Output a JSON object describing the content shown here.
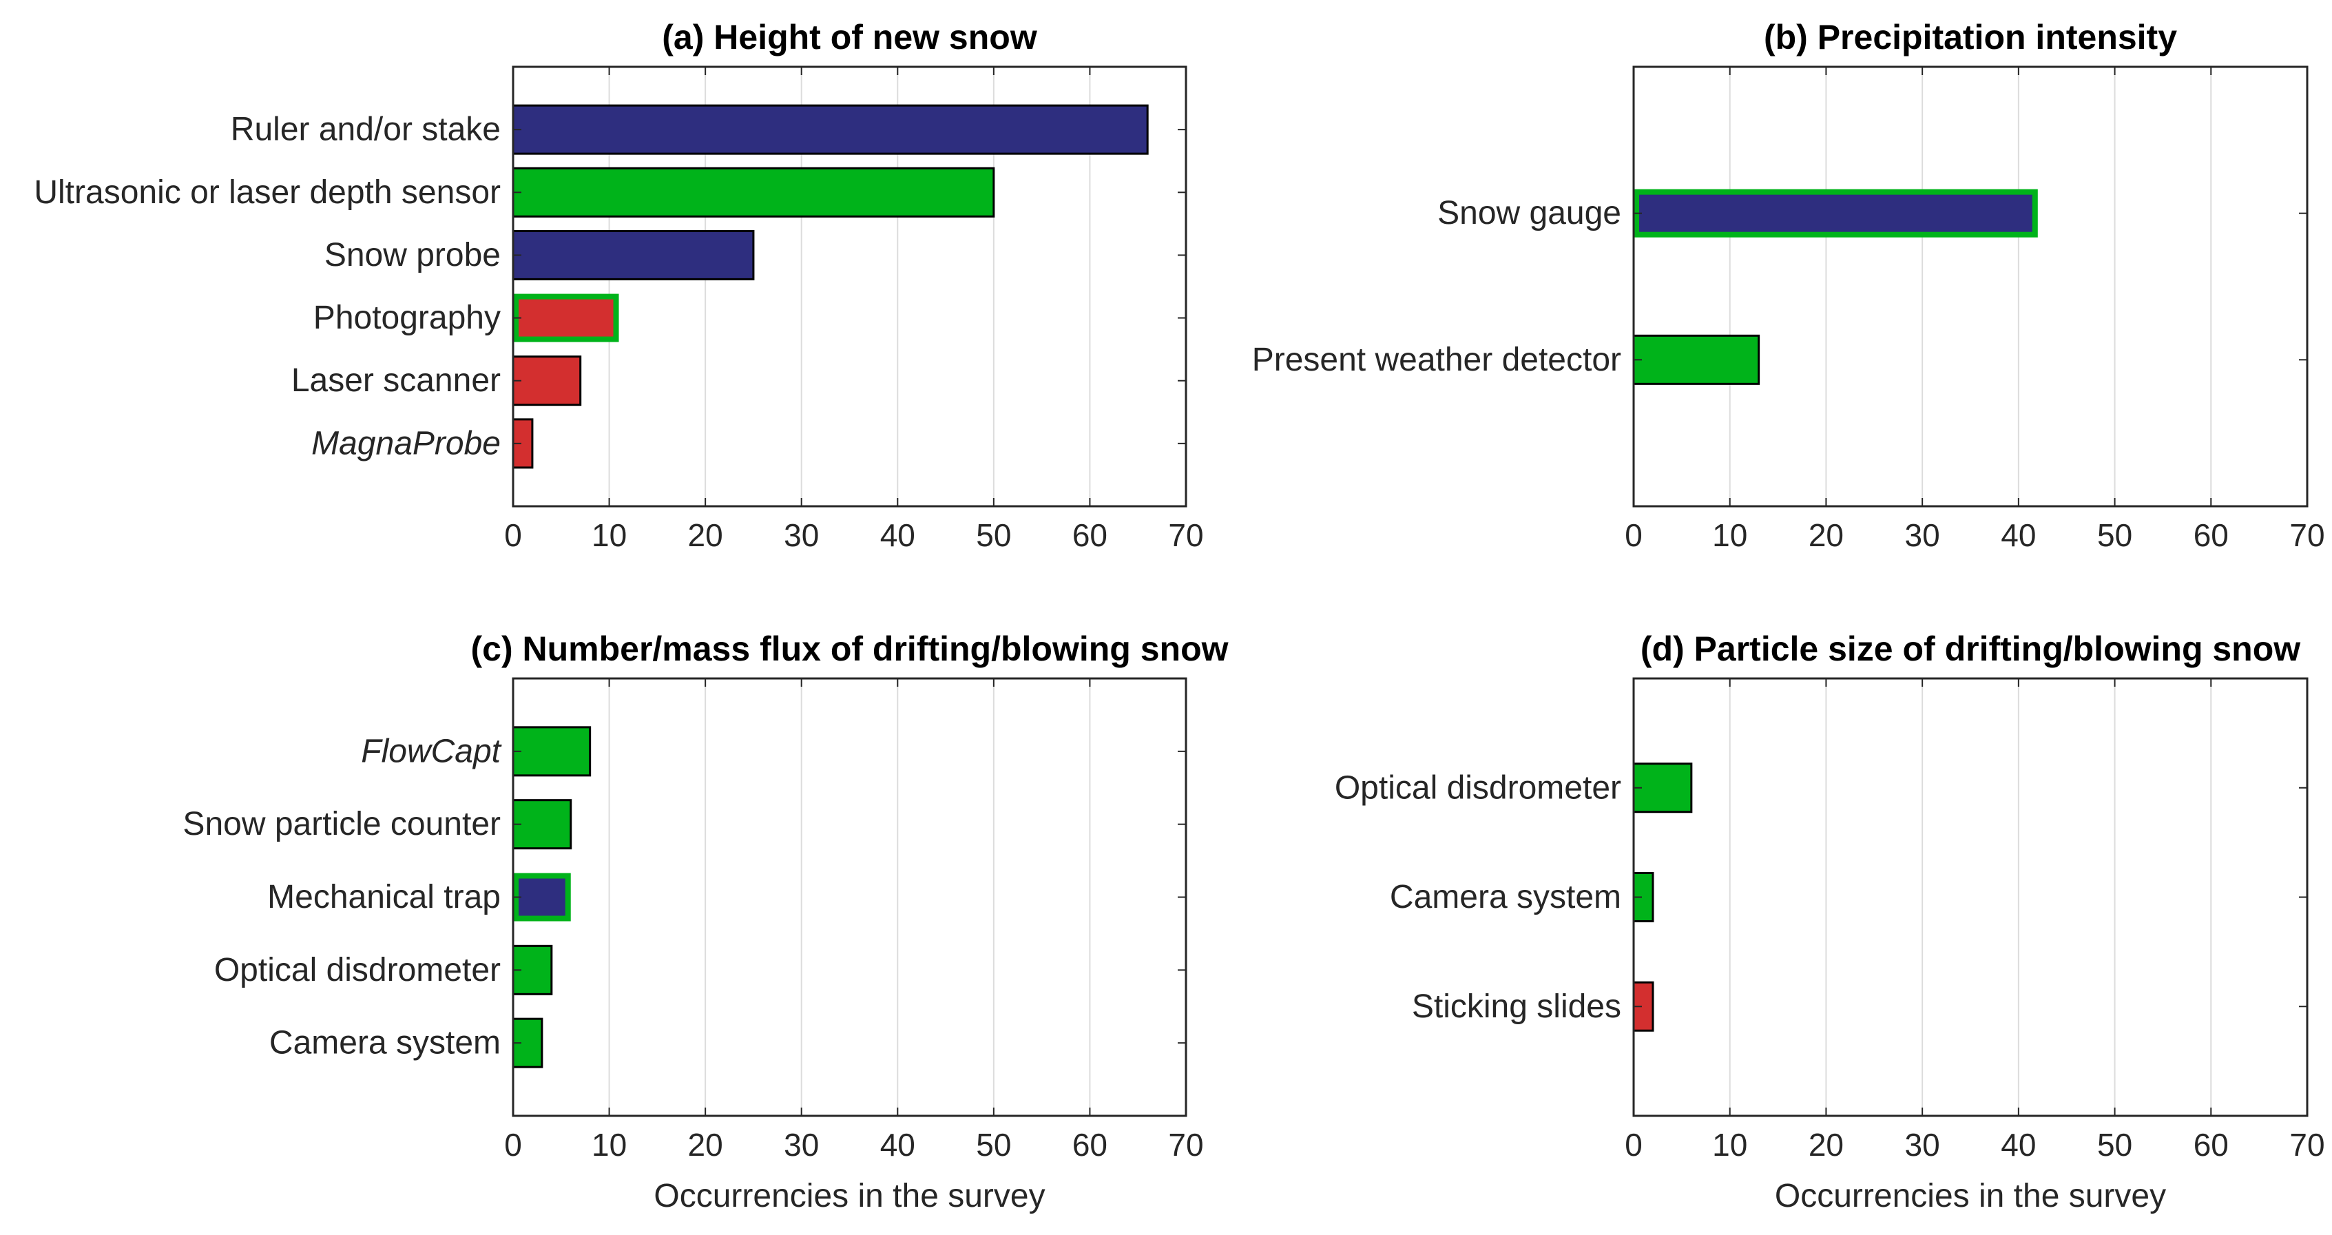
{
  "chart_data": [
    {
      "id": "a",
      "type": "bar",
      "orientation": "horizontal",
      "title": "(a) Height of new snow",
      "xlabel": "",
      "xlim": [
        0,
        70
      ],
      "xticks": [
        0,
        10,
        20,
        30,
        40,
        50,
        60,
        70
      ],
      "categories": [
        "Ruler and/or stake",
        "Ultrasonic or laser depth sensor",
        "Snow probe",
        "Photography",
        "Laser scanner",
        "MagnaProbe"
      ],
      "italic": [
        false,
        false,
        false,
        false,
        false,
        true
      ],
      "values": [
        66,
        50,
        25,
        11,
        7,
        2
      ],
      "colors": [
        "navy",
        "green",
        "navy",
        "red",
        "red",
        "red"
      ],
      "highlight": [
        false,
        false,
        false,
        true,
        false,
        false
      ],
      "grid": true
    },
    {
      "id": "b",
      "type": "bar",
      "orientation": "horizontal",
      "title": "(b) Precipitation intensity",
      "xlabel": "",
      "xlim": [
        0,
        70
      ],
      "xticks": [
        0,
        10,
        20,
        30,
        40,
        50,
        60,
        70
      ],
      "categories": [
        "Snow gauge",
        "Present weather detector"
      ],
      "italic": [
        false,
        false
      ],
      "values": [
        42,
        13
      ],
      "colors": [
        "navy",
        "green"
      ],
      "highlight": [
        true,
        false
      ],
      "grid": true
    },
    {
      "id": "c",
      "type": "bar",
      "orientation": "horizontal",
      "title": "(c) Number/mass flux of drifting/blowing snow",
      "xlabel": "Occurrencies in the survey",
      "xlim": [
        0,
        70
      ],
      "xticks": [
        0,
        10,
        20,
        30,
        40,
        50,
        60,
        70
      ],
      "categories": [
        "FlowCapt",
        "Snow particle counter",
        "Mechanical trap",
        "Optical disdrometer",
        "Camera system"
      ],
      "italic": [
        true,
        false,
        false,
        false,
        false
      ],
      "values": [
        8,
        6,
        6,
        4,
        3
      ],
      "colors": [
        "green",
        "green",
        "navy",
        "green",
        "green"
      ],
      "highlight": [
        false,
        false,
        true,
        false,
        false
      ],
      "grid": true
    },
    {
      "id": "d",
      "type": "bar",
      "orientation": "horizontal",
      "title": "(d) Particle size of drifting/blowing snow",
      "xlabel": "Occurrencies in the survey",
      "xlim": [
        0,
        70
      ],
      "xticks": [
        0,
        10,
        20,
        30,
        40,
        50,
        60,
        70
      ],
      "categories": [
        "Optical disdrometer",
        "Camera system",
        "Sticking slides"
      ],
      "italic": [
        false,
        false,
        false
      ],
      "values": [
        6,
        2,
        2
      ],
      "colors": [
        "green",
        "green",
        "red"
      ],
      "highlight": [
        false,
        false,
        false
      ],
      "grid": true
    }
  ],
  "palette": {
    "navy": "#2E2E7F",
    "green": "#00B31A",
    "red": "#D32F2F",
    "edge": "#000000",
    "highlight_edge": "#00B31A",
    "grid": "#DCDCDC",
    "axis": "#262626"
  }
}
